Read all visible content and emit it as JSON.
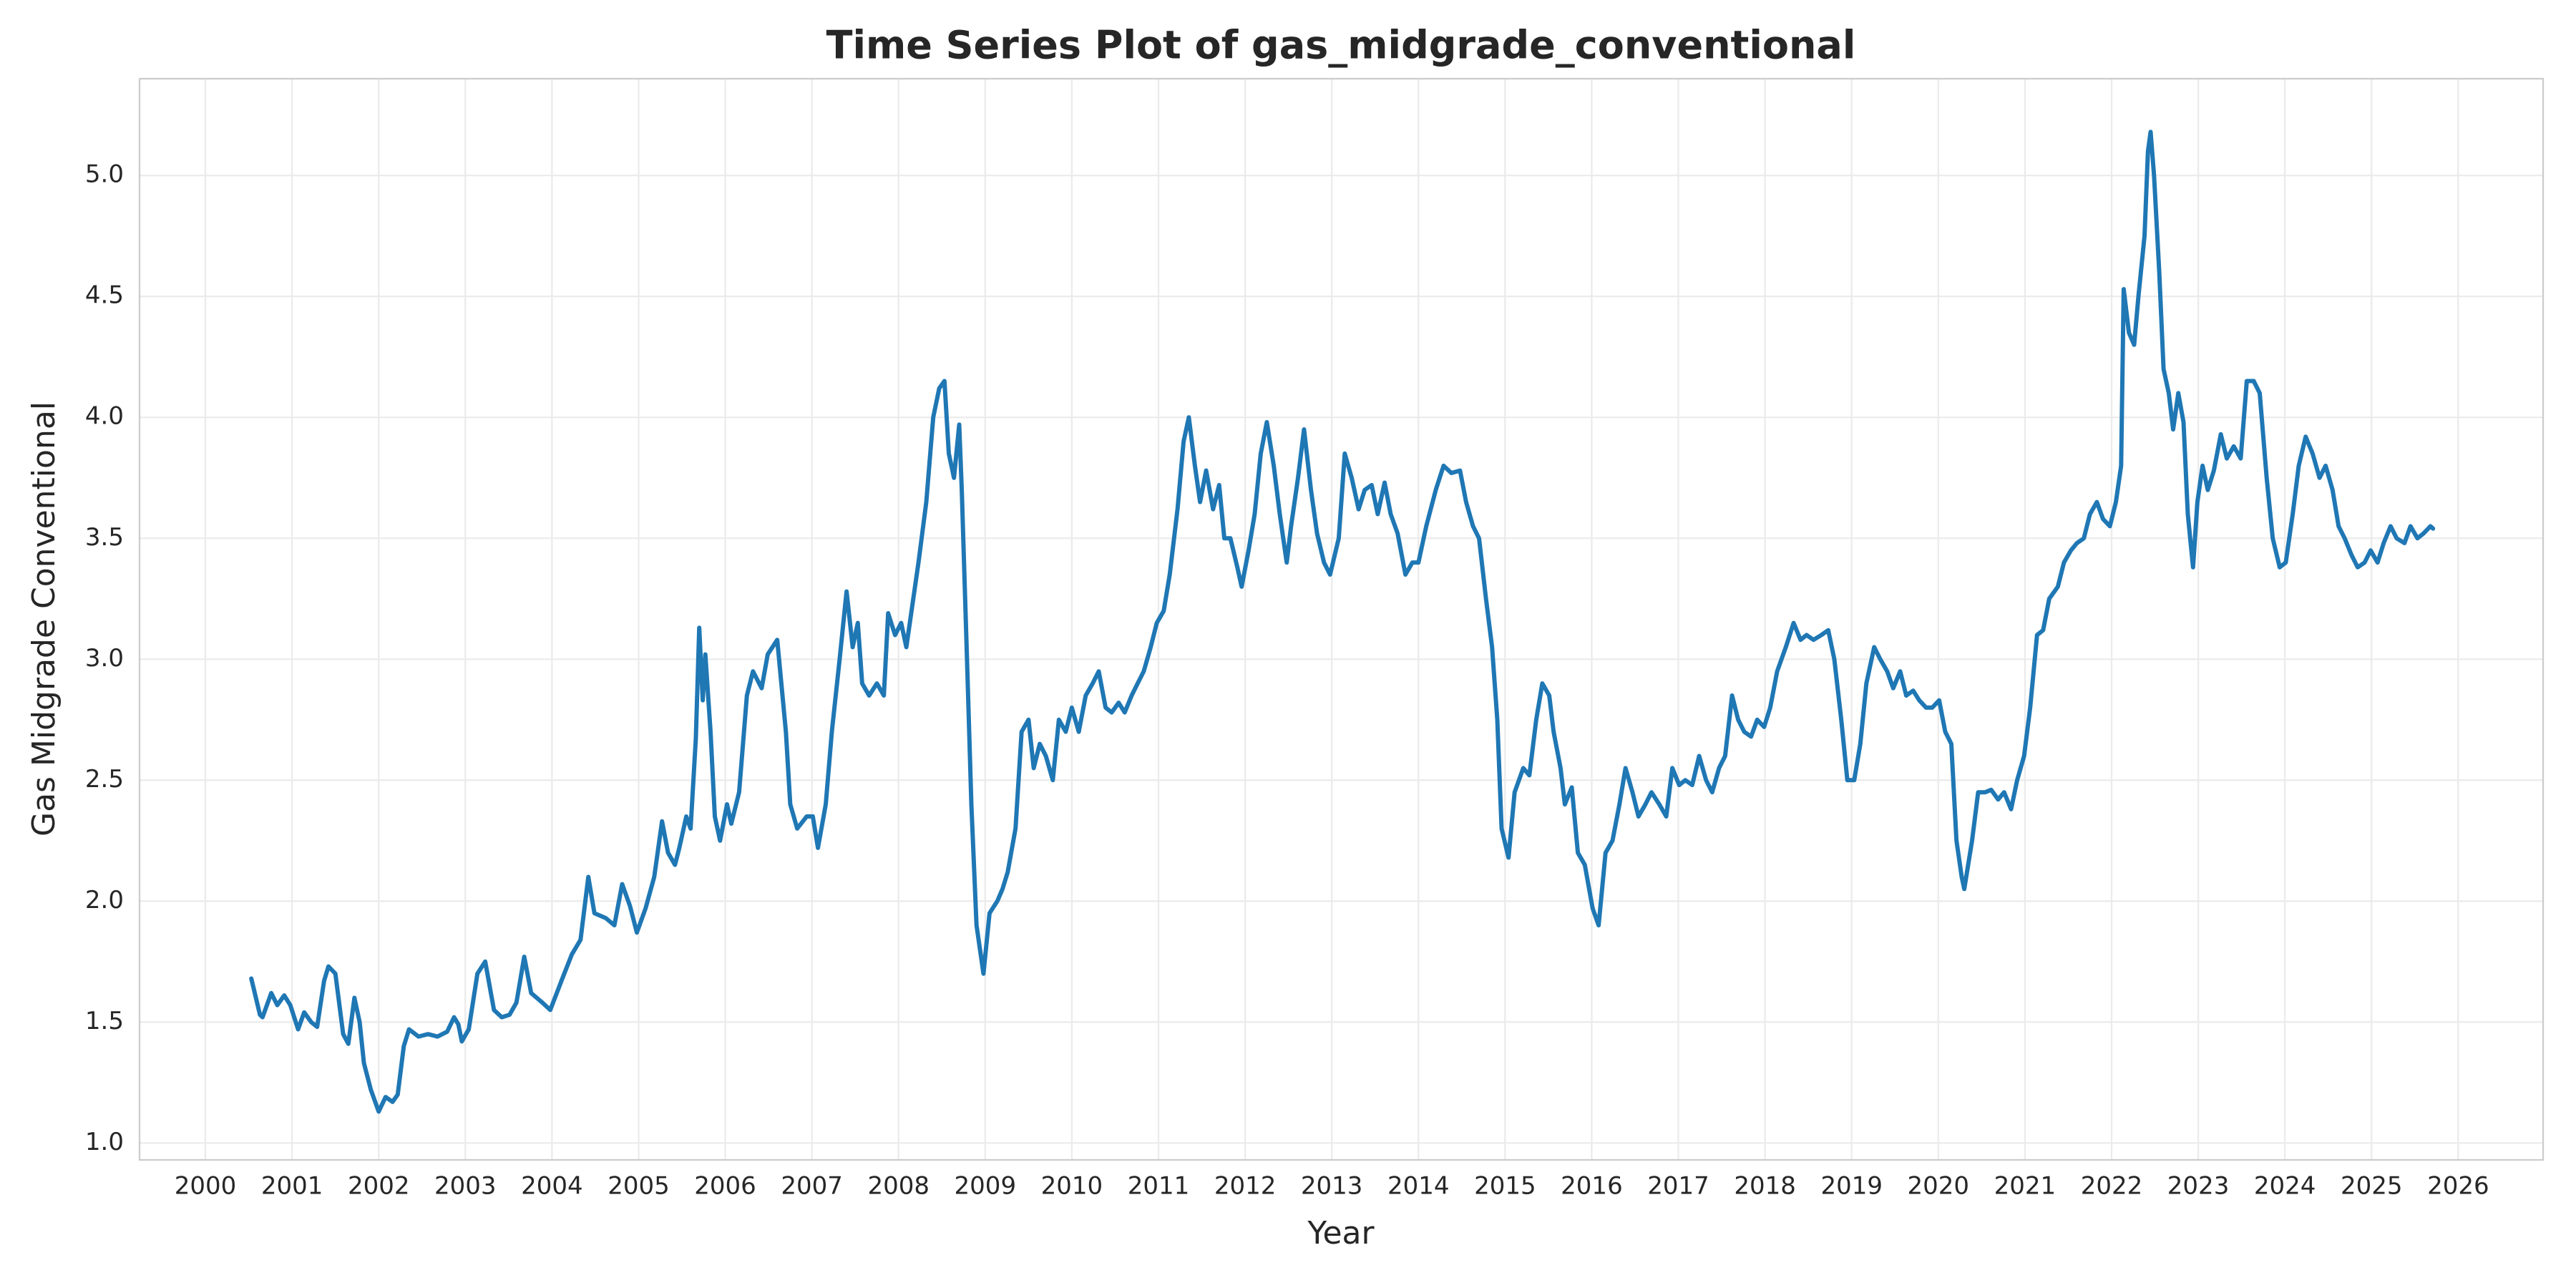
{
  "chart_data": {
    "type": "line",
    "title": "Time Series Plot of gas_midgrade_conventional",
    "x_label": "Year",
    "y_label": "Gas Midgrade Conventional",
    "color": "#1f77b4",
    "grid": true,
    "xlim": [
      1999.24,
      2026.98
    ],
    "ylim": [
      0.93,
      5.4
    ],
    "xticks": [
      2000,
      2001,
      2002,
      2003,
      2004,
      2005,
      2006,
      2007,
      2008,
      2009,
      2010,
      2011,
      2012,
      2013,
      2014,
      2015,
      2016,
      2017,
      2018,
      2019,
      2020,
      2021,
      2022,
      2023,
      2024,
      2025,
      2026
    ],
    "yticks": [
      {
        "value": 1,
        "label": "1.0"
      },
      1.5,
      {
        "value": 2,
        "label": "2.0"
      },
      2.5,
      {
        "value": 3,
        "label": "3.0"
      },
      3.5,
      {
        "value": 4,
        "label": "4.0"
      },
      4.5,
      {
        "value": 5,
        "label": "5.0"
      }
    ],
    "x": [
      2000.53,
      2000.63,
      2000.66,
      2000.76,
      2000.83,
      2000.91,
      2000.98,
      2001.07,
      2001.14,
      2001.22,
      2001.29,
      2001.37,
      2001.42,
      2001.5,
      2001.59,
      2001.65,
      2001.72,
      2001.78,
      2001.83,
      2001.91,
      2002.0,
      2002.08,
      2002.16,
      2002.22,
      2002.29,
      2002.35,
      2002.46,
      2002.57,
      2002.68,
      2002.79,
      2002.87,
      2002.92,
      2002.96,
      2003.04,
      2003.14,
      2003.23,
      2003.33,
      2003.42,
      2003.51,
      2003.59,
      2003.68,
      2003.76,
      2003.89,
      2003.98,
      2004.12,
      2004.23,
      2004.33,
      2004.42,
      2004.49,
      2004.62,
      2004.72,
      2004.81,
      2004.9,
      2004.98,
      2005.08,
      2005.18,
      2005.27,
      2005.34,
      2005.42,
      2005.47,
      2005.55,
      2005.6,
      2005.66,
      2005.7,
      2005.74,
      2005.77,
      2005.83,
      2005.88,
      2005.94,
      2006.02,
      2006.07,
      2006.16,
      2006.25,
      2006.32,
      2006.42,
      2006.49,
      2006.6,
      2006.7,
      2006.75,
      2006.83,
      2006.94,
      2007.01,
      2007.07,
      2007.16,
      2007.23,
      2007.32,
      2007.4,
      2007.47,
      2007.53,
      2007.58,
      2007.66,
      2007.75,
      2007.83,
      2007.88,
      2007.96,
      2008.03,
      2008.09,
      2008.15,
      2008.23,
      2008.32,
      2008.4,
      2008.47,
      2008.53,
      2008.58,
      2008.64,
      2008.7,
      2008.73,
      2008.79,
      2008.84,
      2008.9,
      2008.98,
      2009.05,
      2009.14,
      2009.2,
      2009.26,
      2009.35,
      2009.42,
      2009.5,
      2009.56,
      2009.63,
      2009.7,
      2009.78,
      2009.85,
      2009.93,
      2010.0,
      2010.08,
      2010.16,
      2010.24,
      2010.31,
      2010.39,
      2010.46,
      2010.54,
      2010.61,
      2010.69,
      2010.76,
      2010.83,
      2010.91,
      2010.98,
      2011.06,
      2011.13,
      2011.22,
      2011.29,
      2011.35,
      2011.42,
      2011.48,
      2011.55,
      2011.63,
      2011.7,
      2011.76,
      2011.83,
      2011.91,
      2011.96,
      2012.04,
      2012.11,
      2012.18,
      2012.25,
      2012.33,
      2012.4,
      2012.48,
      2012.53,
      2012.61,
      2012.68,
      2012.76,
      2012.83,
      2012.91,
      2012.98,
      2013.08,
      2013.15,
      2013.23,
      2013.31,
      2013.38,
      2013.46,
      2013.53,
      2013.61,
      2013.68,
      2013.76,
      2013.85,
      2013.93,
      2014.0,
      2014.09,
      2014.2,
      2014.29,
      2014.38,
      2014.48,
      2014.55,
      2014.63,
      2014.7,
      2014.78,
      2014.85,
      2014.91,
      2014.96,
      2015.04,
      2015.11,
      2015.21,
      2015.28,
      2015.36,
      2015.43,
      2015.51,
      2015.56,
      2015.64,
      2015.69,
      2015.77,
      2015.84,
      2015.92,
      2016.01,
      2016.08,
      2016.16,
      2016.24,
      2016.32,
      2016.39,
      2016.47,
      2016.54,
      2016.62,
      2016.69,
      2016.78,
      2016.86,
      2016.93,
      2017.01,
      2017.08,
      2017.16,
      2017.24,
      2017.32,
      2017.39,
      2017.47,
      2017.54,
      2017.62,
      2017.69,
      2017.76,
      2017.84,
      2017.91,
      2017.99,
      2018.06,
      2018.14,
      2018.24,
      2018.33,
      2018.41,
      2018.48,
      2018.56,
      2018.65,
      2018.73,
      2018.8,
      2018.88,
      2018.95,
      2019.03,
      2019.1,
      2019.17,
      2019.26,
      2019.33,
      2019.41,
      2019.48,
      2019.56,
      2019.63,
      2019.71,
      2019.78,
      2019.86,
      2019.93,
      2020.01,
      2020.08,
      2020.15,
      2020.21,
      2020.27,
      2020.3,
      2020.39,
      2020.46,
      2020.54,
      2020.61,
      2020.69,
      2020.76,
      2020.84,
      2020.91,
      2020.99,
      2021.06,
      2021.14,
      2021.21,
      2021.28,
      2021.38,
      2021.45,
      2021.53,
      2021.6,
      2021.68,
      2021.75,
      2021.83,
      2021.9,
      2021.98,
      2022.05,
      2022.11,
      2022.14,
      2022.2,
      2022.26,
      2022.31,
      2022.38,
      2022.42,
      2022.45,
      2022.49,
      2022.55,
      2022.6,
      2022.66,
      2022.71,
      2022.77,
      2022.83,
      2022.88,
      2022.94,
      2022.99,
      2023.05,
      2023.11,
      2023.18,
      2023.26,
      2023.33,
      2023.41,
      2023.49,
      2023.56,
      2023.64,
      2023.71,
      2023.79,
      2023.86,
      2023.94,
      2024.01,
      2024.09,
      2024.16,
      2024.24,
      2024.32,
      2024.4,
      2024.47,
      2024.55,
      2024.62,
      2024.69,
      2024.77,
      2024.84,
      2024.92,
      2024.99,
      2025.07,
      2025.14,
      2025.22,
      2025.29,
      2025.38,
      2025.45,
      2025.53,
      2025.6,
      2025.68,
      2025.71
    ],
    "values": [
      1.68,
      1.53,
      1.52,
      1.62,
      1.57,
      1.61,
      1.57,
      1.47,
      1.54,
      1.5,
      1.48,
      1.67,
      1.73,
      1.7,
      1.45,
      1.41,
      1.6,
      1.5,
      1.33,
      1.22,
      1.13,
      1.19,
      1.17,
      1.2,
      1.4,
      1.47,
      1.44,
      1.45,
      1.44,
      1.46,
      1.52,
      1.49,
      1.42,
      1.47,
      1.7,
      1.75,
      1.55,
      1.52,
      1.53,
      1.58,
      1.77,
      1.62,
      1.58,
      1.55,
      1.68,
      1.78,
      1.84,
      2.1,
      1.95,
      1.93,
      1.9,
      2.07,
      1.98,
      1.87,
      1.97,
      2.1,
      2.33,
      2.2,
      2.15,
      2.22,
      2.35,
      2.3,
      2.67,
      3.13,
      2.83,
      3.02,
      2.7,
      2.35,
      2.25,
      2.4,
      2.32,
      2.45,
      2.85,
      2.95,
      2.88,
      3.02,
      3.08,
      2.7,
      2.4,
      2.3,
      2.35,
      2.35,
      2.22,
      2.4,
      2.7,
      3.0,
      3.28,
      3.05,
      3.15,
      2.9,
      2.85,
      2.9,
      2.85,
      3.19,
      3.1,
      3.15,
      3.05,
      3.2,
      3.4,
      3.65,
      4.0,
      4.12,
      4.15,
      3.85,
      3.75,
      3.97,
      3.7,
      3.0,
      2.4,
      1.9,
      1.7,
      1.95,
      2.0,
      2.05,
      2.12,
      2.3,
      2.7,
      2.75,
      2.55,
      2.65,
      2.6,
      2.5,
      2.75,
      2.7,
      2.8,
      2.7,
      2.85,
      2.9,
      2.95,
      2.8,
      2.78,
      2.82,
      2.78,
      2.85,
      2.9,
      2.95,
      3.05,
      3.15,
      3.2,
      3.35,
      3.62,
      3.9,
      4.0,
      3.8,
      3.65,
      3.78,
      3.62,
      3.72,
      3.5,
      3.5,
      3.38,
      3.3,
      3.45,
      3.6,
      3.85,
      3.98,
      3.8,
      3.6,
      3.4,
      3.55,
      3.75,
      3.95,
      3.7,
      3.52,
      3.4,
      3.35,
      3.5,
      3.85,
      3.75,
      3.62,
      3.7,
      3.72,
      3.6,
      3.73,
      3.6,
      3.52,
      3.35,
      3.4,
      3.4,
      3.55,
      3.7,
      3.8,
      3.77,
      3.78,
      3.65,
      3.55,
      3.5,
      3.25,
      3.05,
      2.75,
      2.3,
      2.18,
      2.45,
      2.55,
      2.52,
      2.75,
      2.9,
      2.85,
      2.7,
      2.55,
      2.4,
      2.47,
      2.2,
      2.15,
      1.97,
      1.9,
      2.2,
      2.25,
      2.4,
      2.55,
      2.45,
      2.35,
      2.4,
      2.45,
      2.4,
      2.35,
      2.55,
      2.48,
      2.5,
      2.48,
      2.6,
      2.5,
      2.45,
      2.55,
      2.6,
      2.85,
      2.75,
      2.7,
      2.68,
      2.75,
      2.72,
      2.8,
      2.95,
      3.05,
      3.15,
      3.08,
      3.1,
      3.08,
      3.1,
      3.12,
      3.0,
      2.75,
      2.5,
      2.5,
      2.65,
      2.9,
      3.05,
      3.0,
      2.95,
      2.88,
      2.95,
      2.85,
      2.87,
      2.83,
      2.8,
      2.8,
      2.83,
      2.7,
      2.65,
      2.25,
      2.1,
      2.05,
      2.25,
      2.45,
      2.45,
      2.46,
      2.42,
      2.45,
      2.38,
      2.5,
      2.6,
      2.8,
      3.1,
      3.12,
      3.25,
      3.3,
      3.4,
      3.45,
      3.48,
      3.5,
      3.6,
      3.65,
      3.58,
      3.55,
      3.65,
      3.8,
      4.53,
      4.35,
      4.3,
      4.5,
      4.75,
      5.1,
      5.18,
      5.0,
      4.6,
      4.2,
      4.1,
      3.95,
      4.1,
      3.98,
      3.6,
      3.38,
      3.65,
      3.8,
      3.7,
      3.78,
      3.93,
      3.83,
      3.88,
      3.83,
      4.15,
      4.15,
      4.1,
      3.75,
      3.5,
      3.38,
      3.4,
      3.6,
      3.8,
      3.92,
      3.85,
      3.75,
      3.8,
      3.7,
      3.55,
      3.5,
      3.43,
      3.38,
      3.4,
      3.45,
      3.4,
      3.48,
      3.55,
      3.5,
      3.48,
      3.55,
      3.5,
      3.52,
      3.55,
      3.54
    ]
  }
}
